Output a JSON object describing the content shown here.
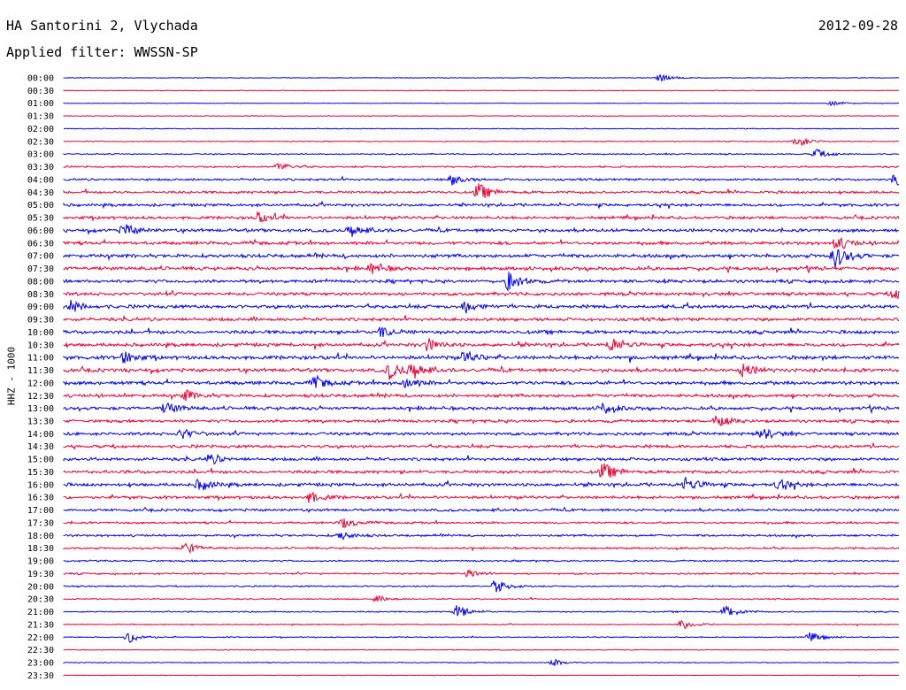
{
  "header": {
    "station": "HA Santorini 2, Vlychada",
    "date": "2012-09-28",
    "filter_label": "Applied filter: WWSSN-SP"
  },
  "chart_data": {
    "type": "helicorder",
    "title": "HA Santorini 2, Vlychada",
    "date": "2012-09-28",
    "filter": "WWSSN-SP",
    "ylabel": "HHZ - 1000",
    "row_labels": [
      "00:00",
      "00:30",
      "01:00",
      "01:30",
      "02:00",
      "02:30",
      "03:00",
      "03:30",
      "04:00",
      "04:30",
      "05:00",
      "05:30",
      "06:00",
      "06:30",
      "07:00",
      "07:30",
      "08:00",
      "08:30",
      "09:00",
      "09:30",
      "10:00",
      "10:30",
      "11:00",
      "11:30",
      "12:00",
      "12:30",
      "13:00",
      "13:30",
      "14:00",
      "14:30",
      "15:00",
      "15:30",
      "16:00",
      "16:30",
      "17:00",
      "17:30",
      "18:00",
      "18:30",
      "19:00",
      "19:30",
      "20:00",
      "20:30",
      "21:00",
      "21:30",
      "22:00",
      "22:30",
      "23:00",
      "23:30"
    ],
    "trace_colors": [
      "#0000ee",
      "#ee0033"
    ],
    "noise_level": [
      0.3,
      0.35,
      0.3,
      0.3,
      0.4,
      0.45,
      0.6,
      0.8,
      1.0,
      1.2,
      1.3,
      1.4,
      1.5,
      1.5,
      1.6,
      1.6,
      1.5,
      1.5,
      1.6,
      1.5,
      1.6,
      1.6,
      1.7,
      1.7,
      1.6,
      1.5,
      1.5,
      1.4,
      1.4,
      1.4,
      1.4,
      1.5,
      1.5,
      1.4,
      1.2,
      1.0,
      1.0,
      0.9,
      0.8,
      0.8,
      0.7,
      0.6,
      0.6,
      0.5,
      0.5,
      0.4,
      0.4,
      0.3
    ],
    "events": [
      {
        "row": 0,
        "x": 745,
        "amp": 5
      },
      {
        "row": 2,
        "x": 940,
        "amp": 3
      },
      {
        "row": 5,
        "x": 900,
        "amp": 7
      },
      {
        "row": 6,
        "x": 922,
        "amp": 6
      },
      {
        "row": 7,
        "x": 315,
        "amp": 5
      },
      {
        "row": 8,
        "x": 510,
        "amp": 6
      },
      {
        "row": 8,
        "x": 1012,
        "amp": 8
      },
      {
        "row": 9,
        "x": 540,
        "amp": 10
      },
      {
        "row": 11,
        "x": 290,
        "amp": 7
      },
      {
        "row": 12,
        "x": 140,
        "amp": 8
      },
      {
        "row": 12,
        "x": 395,
        "amp": 7
      },
      {
        "row": 13,
        "x": 945,
        "amp": 9
      },
      {
        "row": 14,
        "x": 943,
        "amp": 14
      },
      {
        "row": 15,
        "x": 420,
        "amp": 7
      },
      {
        "row": 16,
        "x": 575,
        "amp": 12
      },
      {
        "row": 17,
        "x": 1010,
        "amp": 7
      },
      {
        "row": 18,
        "x": 80,
        "amp": 7
      },
      {
        "row": 18,
        "x": 525,
        "amp": 7
      },
      {
        "row": 20,
        "x": 430,
        "amp": 6
      },
      {
        "row": 21,
        "x": 483,
        "amp": 7
      },
      {
        "row": 21,
        "x": 690,
        "amp": 8
      },
      {
        "row": 22,
        "x": 140,
        "amp": 7
      },
      {
        "row": 22,
        "x": 525,
        "amp": 7
      },
      {
        "row": 23,
        "x": 440,
        "amp": 9
      },
      {
        "row": 23,
        "x": 465,
        "amp": 9
      },
      {
        "row": 23,
        "x": 840,
        "amp": 8
      },
      {
        "row": 24,
        "x": 355,
        "amp": 7
      },
      {
        "row": 24,
        "x": 455,
        "amp": 7
      },
      {
        "row": 25,
        "x": 210,
        "amp": 6
      },
      {
        "row": 26,
        "x": 187,
        "amp": 7
      },
      {
        "row": 26,
        "x": 680,
        "amp": 7
      },
      {
        "row": 27,
        "x": 810,
        "amp": 6
      },
      {
        "row": 28,
        "x": 205,
        "amp": 6
      },
      {
        "row": 28,
        "x": 860,
        "amp": 7
      },
      {
        "row": 30,
        "x": 237,
        "amp": 6
      },
      {
        "row": 31,
        "x": 681,
        "amp": 10
      },
      {
        "row": 32,
        "x": 225,
        "amp": 7
      },
      {
        "row": 32,
        "x": 775,
        "amp": 8
      },
      {
        "row": 32,
        "x": 880,
        "amp": 6
      },
      {
        "row": 33,
        "x": 350,
        "amp": 6
      },
      {
        "row": 35,
        "x": 388,
        "amp": 6
      },
      {
        "row": 36,
        "x": 385,
        "amp": 5
      },
      {
        "row": 37,
        "x": 210,
        "amp": 7
      },
      {
        "row": 39,
        "x": 530,
        "amp": 5
      },
      {
        "row": 40,
        "x": 560,
        "amp": 8
      },
      {
        "row": 41,
        "x": 425,
        "amp": 4
      },
      {
        "row": 42,
        "x": 515,
        "amp": 8
      },
      {
        "row": 42,
        "x": 820,
        "amp": 8
      },
      {
        "row": 43,
        "x": 770,
        "amp": 6
      },
      {
        "row": 44,
        "x": 145,
        "amp": 7
      },
      {
        "row": 44,
        "x": 915,
        "amp": 6
      },
      {
        "row": 46,
        "x": 625,
        "amp": 4
      }
    ]
  }
}
